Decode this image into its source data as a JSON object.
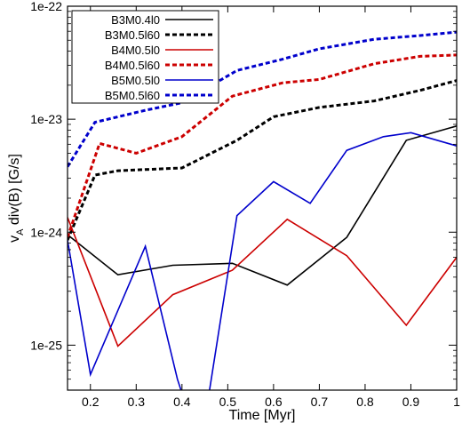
{
  "chart_data": {
    "type": "line",
    "xlabel": "Time [Myr]",
    "ylabel_main": "v",
    "ylabel_sub": "A",
    "ylabel_rest": " div(B) [G/s]",
    "xlim": [
      0.15,
      1.0
    ],
    "ylim": [
      4e-26,
      1e-22
    ],
    "yscale": "log",
    "x_ticks": [
      0.2,
      0.3,
      0.4,
      0.5,
      0.6,
      0.7,
      0.8,
      0.9,
      1.0
    ],
    "x_tick_labels": [
      "0.2",
      "0.3",
      "0.4",
      "0.5",
      "0.6",
      "0.7",
      "0.8",
      "0.9",
      "1"
    ],
    "y_ticks": [
      1e-25,
      1e-24,
      1e-23,
      1e-22
    ],
    "y_tick_labels": [
      "1e-25",
      "1e-24",
      "1e-23",
      "1e-22"
    ],
    "legend_position": "top-left",
    "series": [
      {
        "name": "B3M0.4l0",
        "color": "#000000",
        "dash": "solid",
        "x": [
          0.15,
          0.26,
          0.38,
          0.51,
          0.63,
          0.76,
          0.89,
          1.0
        ],
        "y": [
          9.5e-25,
          4.2e-25,
          5.1e-25,
          5.3e-25,
          3.4e-25,
          9e-25,
          6.5e-24,
          8.7e-24
        ]
      },
      {
        "name": "B3M0.5l60",
        "color": "#000000",
        "dash": "dashed",
        "x": [
          0.15,
          0.21,
          0.26,
          0.4,
          0.52,
          0.6,
          0.7,
          0.82,
          0.92,
          1.0
        ],
        "y": [
          8.5e-25,
          3.2e-24,
          3.5e-24,
          3.7e-24,
          6.5e-24,
          1.05e-23,
          1.27e-23,
          1.45e-23,
          1.8e-23,
          2.2e-23
        ]
      },
      {
        "name": "B4M0.5l0",
        "color": "#cc0000",
        "dash": "solid",
        "x": [
          0.15,
          0.26,
          0.38,
          0.51,
          0.63,
          0.76,
          0.89,
          1.0
        ],
        "y": [
          1.35e-24,
          9.8e-26,
          2.8e-25,
          4.6e-25,
          1.3e-24,
          6.2e-25,
          1.5e-25,
          6e-25
        ]
      },
      {
        "name": "B4M0.5l60",
        "color": "#cc0000",
        "dash": "dashed",
        "x": [
          0.15,
          0.22,
          0.3,
          0.4,
          0.51,
          0.62,
          0.7,
          0.82,
          0.92,
          1.0
        ],
        "y": [
          9e-25,
          6.1e-24,
          5e-24,
          7e-24,
          1.6e-23,
          2.1e-23,
          2.25e-23,
          3.1e-23,
          3.6e-23,
          3.7e-23
        ]
      },
      {
        "name": "B5M0.5l0",
        "color": "#0000cc",
        "dash": "solid",
        "x": [
          0.15,
          0.2,
          0.32,
          0.39,
          0.44,
          0.52,
          0.6,
          0.68,
          0.76,
          0.84,
          0.9,
          1.0
        ],
        "y": [
          8.5e-25,
          5.5e-26,
          7.5e-25,
          5e-26,
          1.2e-26,
          1.4e-24,
          2.8e-24,
          1.8e-24,
          5.3e-24,
          7e-24,
          7.6e-24,
          5.8e-24
        ]
      },
      {
        "name": "B5M0.5l60",
        "color": "#0000cc",
        "dash": "dashed",
        "x": [
          0.15,
          0.21,
          0.32,
          0.4,
          0.52,
          0.62,
          0.7,
          0.82,
          0.92,
          1.0
        ],
        "y": [
          3.8e-24,
          9.4e-24,
          1.2e-23,
          1.4e-23,
          2.7e-23,
          3.4e-23,
          4.2e-23,
          5.1e-23,
          5.5e-23,
          5.9e-23
        ]
      }
    ]
  }
}
